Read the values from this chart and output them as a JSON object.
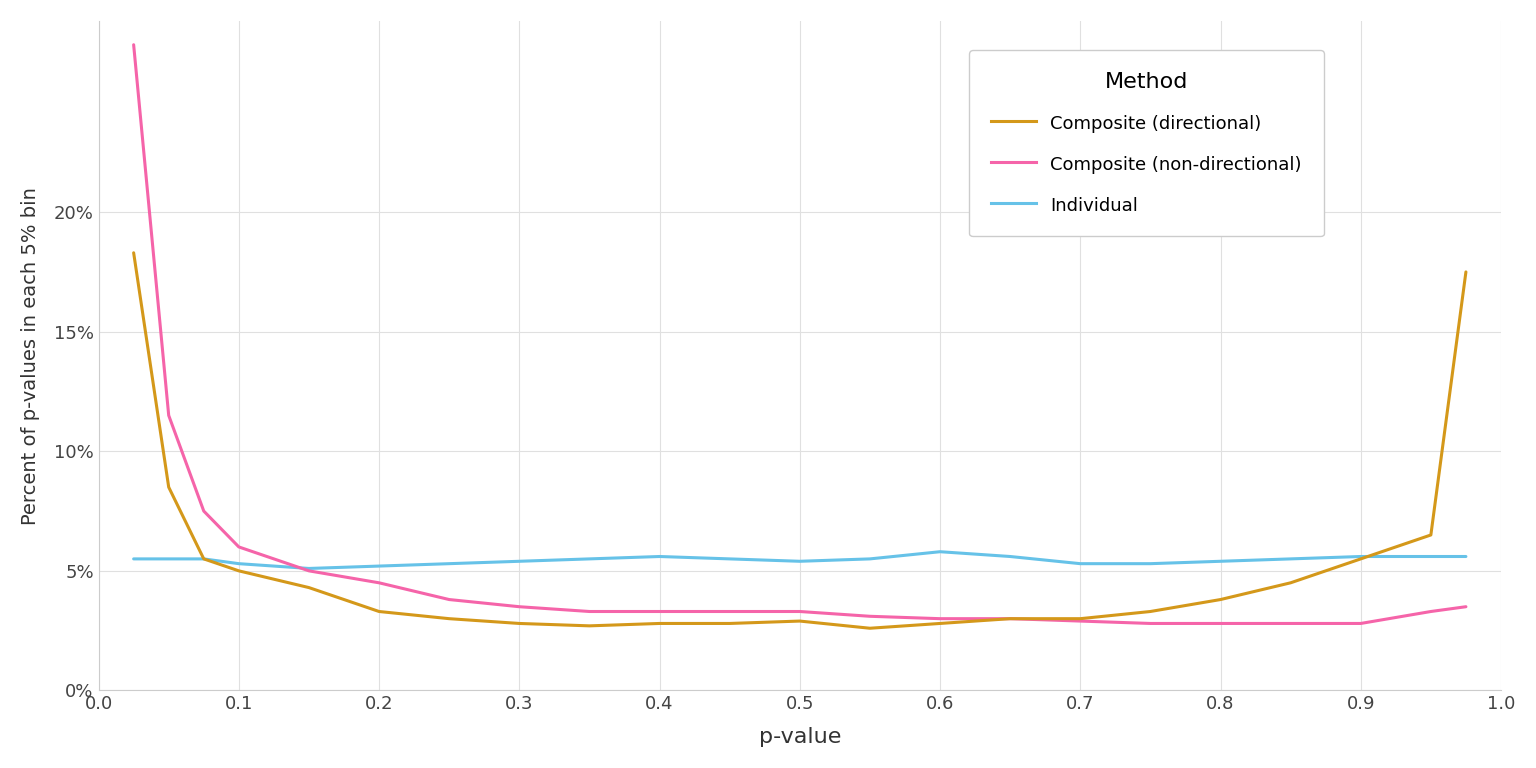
{
  "title": "",
  "xlabel": "p-value",
  "ylabel": "Percent of p-values in each 5% bin",
  "legend_title": "Method",
  "background_color": "#ffffff",
  "grid_color": "#e0e0e0",
  "series": {
    "composite_directional": {
      "label": "Composite (directional)",
      "color": "#D4981A",
      "x": [
        0.025,
        0.05,
        0.075,
        0.1,
        0.15,
        0.2,
        0.25,
        0.3,
        0.35,
        0.4,
        0.45,
        0.5,
        0.55,
        0.6,
        0.65,
        0.7,
        0.75,
        0.8,
        0.85,
        0.9,
        0.95,
        0.975
      ],
      "y": [
        0.183,
        0.085,
        0.055,
        0.05,
        0.043,
        0.033,
        0.03,
        0.028,
        0.027,
        0.028,
        0.028,
        0.029,
        0.026,
        0.028,
        0.03,
        0.03,
        0.033,
        0.038,
        0.045,
        0.055,
        0.065,
        0.175
      ]
    },
    "composite_nondirectional": {
      "label": "Composite (non-directional)",
      "color": "#F564A9",
      "x": [
        0.025,
        0.05,
        0.075,
        0.1,
        0.15,
        0.2,
        0.25,
        0.3,
        0.35,
        0.4,
        0.45,
        0.5,
        0.55,
        0.6,
        0.65,
        0.7,
        0.75,
        0.8,
        0.85,
        0.9,
        0.95,
        0.975
      ],
      "y": [
        0.27,
        0.115,
        0.075,
        0.06,
        0.05,
        0.045,
        0.038,
        0.035,
        0.033,
        0.033,
        0.033,
        0.033,
        0.031,
        0.03,
        0.03,
        0.029,
        0.028,
        0.028,
        0.028,
        0.028,
        0.033,
        0.035
      ]
    },
    "individual": {
      "label": "Individual",
      "color": "#66C2E8",
      "x": [
        0.025,
        0.05,
        0.075,
        0.1,
        0.15,
        0.2,
        0.25,
        0.3,
        0.35,
        0.4,
        0.45,
        0.5,
        0.55,
        0.6,
        0.65,
        0.7,
        0.75,
        0.8,
        0.85,
        0.9,
        0.95,
        0.975
      ],
      "y": [
        0.055,
        0.055,
        0.055,
        0.053,
        0.051,
        0.052,
        0.053,
        0.054,
        0.055,
        0.056,
        0.055,
        0.054,
        0.055,
        0.058,
        0.056,
        0.053,
        0.053,
        0.054,
        0.055,
        0.056,
        0.056,
        0.056
      ]
    }
  },
  "xlim": [
    0.0,
    1.0
  ],
  "ylim": [
    0.0,
    0.28
  ],
  "yticks": [
    0.0,
    0.05,
    0.1,
    0.15,
    0.2
  ],
  "ytick_labels": [
    "0%",
    "5%",
    "10%",
    "15%",
    "20%"
  ],
  "xticks": [
    0.0,
    0.1,
    0.2,
    0.3,
    0.4,
    0.5,
    0.6,
    0.7,
    0.8,
    0.9,
    1.0
  ],
  "line_width": 2.2
}
